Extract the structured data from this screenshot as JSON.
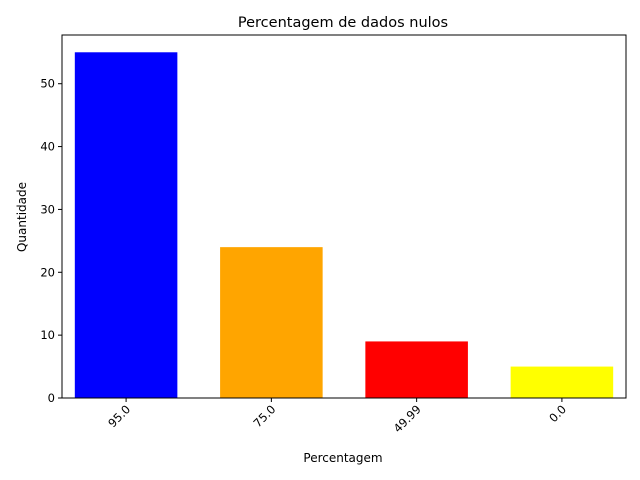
{
  "chart_data": {
    "type": "bar",
    "title": "Percentagem de dados  nulos",
    "xlabel": "Percentagem",
    "ylabel": "Quantidade",
    "categories": [
      "95.0",
      "75.0",
      "49.99",
      "0.0"
    ],
    "values": [
      55,
      24,
      9,
      5
    ],
    "colors": [
      "#0000ff",
      "#ffa500",
      "#ff0000",
      "#ffff00"
    ],
    "ylim": [
      0,
      57.75
    ],
    "yticks": [
      0,
      10,
      20,
      30,
      40,
      50
    ],
    "xtick_rotation": 45,
    "grid": false,
    "legend": "none"
  }
}
